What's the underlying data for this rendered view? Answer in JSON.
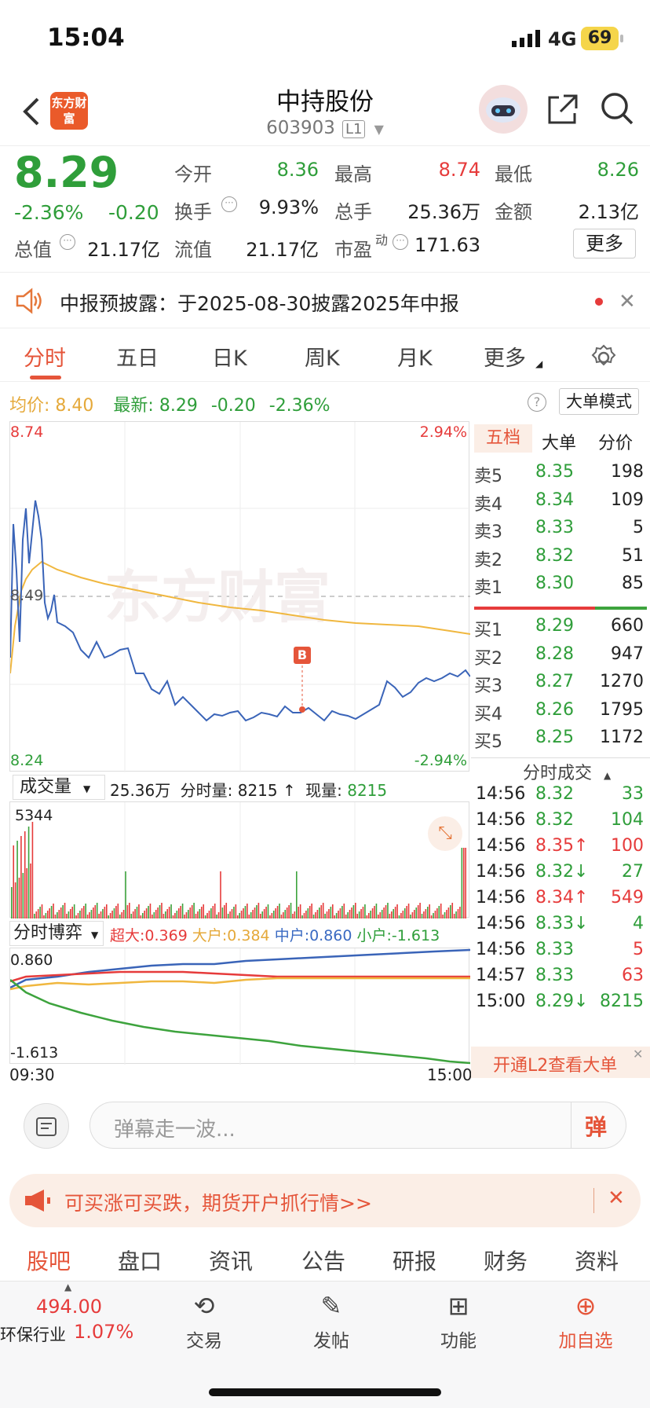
{
  "status": {
    "time": "15:04",
    "network": "4G",
    "battery": "69"
  },
  "header": {
    "logo": "东方财富",
    "title": "中持股份",
    "code": "603903",
    "level": "L1"
  },
  "quote": {
    "price": "8.29",
    "change_pct": "-2.36%",
    "change": "-0.20",
    "open_label": "今开",
    "open": "8.36",
    "high_label": "最高",
    "high": "8.74",
    "low_label": "最低",
    "low": "8.26",
    "turnover_label": "换手",
    "turnover": "9.93%",
    "volume_label": "总手",
    "volume": "25.36万",
    "amount_label": "金额",
    "amount": "2.13亿",
    "mcap_label": "总值",
    "mcap": "21.17亿",
    "float_label": "流值",
    "float": "21.17亿",
    "pe_label": "市盈",
    "pe_sup": "动",
    "pe": "171.63",
    "more": "更多"
  },
  "notice": {
    "text": "中报预披露：于2025-08-30披露2025年中报"
  },
  "tabs": [
    "分时",
    "五日",
    "日K",
    "周K",
    "月K",
    "更多"
  ],
  "summary": {
    "avg_label": "均价:",
    "avg": "8.40",
    "last_label": "最新:",
    "last": "8.29",
    "chg": "-0.20",
    "pct": "-2.36%",
    "mode": "大单模式"
  },
  "chart": {
    "ymax": "8.74",
    "ymin": "8.24",
    "pmax": "2.94%",
    "pmin": "-2.94%",
    "ref": "8.49",
    "marker": "B",
    "watermark": "东方财富"
  },
  "volbar": {
    "label": "成交量",
    "total": "25.36万",
    "seg_label": "分时量:",
    "seg": "8215",
    "cur_label": "现量:",
    "cur": "8215",
    "max": "5344"
  },
  "game": {
    "label": "分时博弈",
    "super": "超大:0.369",
    "big": "大户:0.384",
    "mid": "中户:0.860",
    "small": "小户:-1.613",
    "ymax": "0.860",
    "ymin": "-1.613",
    "t0": "09:30",
    "t1": "15:00"
  },
  "orderbook": {
    "tabs": [
      "五档",
      "大单",
      "分价"
    ],
    "asks": [
      [
        "卖5",
        "8.35",
        "198"
      ],
      [
        "卖4",
        "8.34",
        "109"
      ],
      [
        "卖3",
        "8.33",
        "5"
      ],
      [
        "卖2",
        "8.32",
        "51"
      ],
      [
        "卖1",
        "8.30",
        "85"
      ]
    ],
    "bids": [
      [
        "买1",
        "8.29",
        "660"
      ],
      [
        "买2",
        "8.28",
        "947"
      ],
      [
        "买3",
        "8.27",
        "1270"
      ],
      [
        "买4",
        "8.26",
        "1795"
      ],
      [
        "买5",
        "8.25",
        "1172"
      ]
    ],
    "trades_label": "分时成交",
    "trades": [
      [
        "14:56",
        "8.32",
        "33",
        "",
        "g"
      ],
      [
        "14:56",
        "8.32",
        "104",
        "",
        "g"
      ],
      [
        "14:56",
        "8.35↑",
        "100",
        "r",
        "r"
      ],
      [
        "14:56",
        "8.32↓",
        "27",
        "g",
        "g"
      ],
      [
        "14:56",
        "8.34↑",
        "549",
        "r",
        "r"
      ],
      [
        "14:56",
        "8.33↓",
        "4",
        "g",
        "g"
      ],
      [
        "14:56",
        "8.33",
        "5",
        "g",
        "r"
      ],
      [
        "14:57",
        "8.33",
        "63",
        "g",
        "r"
      ],
      [
        "15:00",
        "8.29↓",
        "8215",
        "g",
        "g"
      ]
    ],
    "l2": "开通L2查看大单"
  },
  "danmu": {
    "placeholder": "弹幕走一波...",
    "btn": "弹"
  },
  "ad": {
    "text": "可买涨可买跌，期货开户抓行情>>"
  },
  "bottom_tabs": [
    "股吧",
    "盘口",
    "资讯",
    "公告",
    "研报",
    "财务",
    "资料"
  ],
  "toolbar": {
    "index": "494.00",
    "industry": "环保行业",
    "industry_pct": "1.07%",
    "items": [
      "交易",
      "发帖",
      "功能",
      "加自选"
    ]
  }
}
